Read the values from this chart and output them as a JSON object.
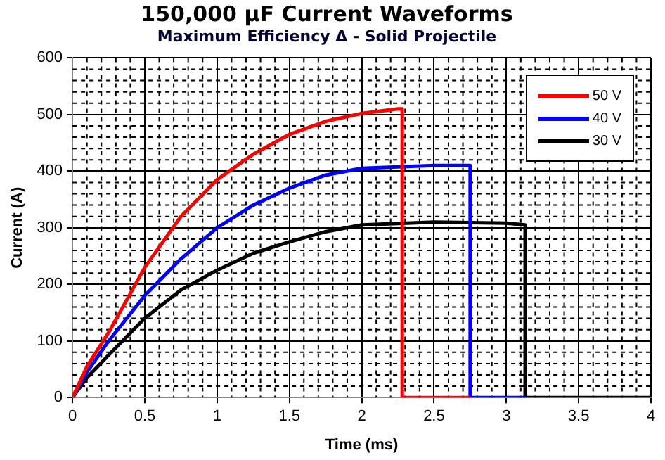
{
  "chart_data": {
    "type": "line",
    "title": "150,000 µF Current Waveforms",
    "subtitle": "Maximum Efficiency Δ - Solid Projectile",
    "xlabel": "Time (ms)",
    "ylabel": "Current (A)",
    "xlim": [
      0,
      4
    ],
    "xticks": [
      0,
      0.5,
      1,
      1.5,
      2,
      2.5,
      3,
      3.5,
      4
    ],
    "ylim": [
      0,
      600
    ],
    "yticks": [
      0,
      100,
      200,
      300,
      400,
      500,
      600
    ],
    "grid": true,
    "legend": "top right",
    "marker": "none",
    "line_style": "solid",
    "series": [
      {
        "name": "50 V",
        "color": "#ff0000",
        "x": [
          0,
          0.1,
          0.25,
          0.5,
          0.75,
          1,
          1.25,
          1.5,
          1.75,
          2,
          2.25,
          2.28,
          2.28,
          2.75
        ],
        "values": [
          0,
          55,
          115,
          230,
          320,
          385,
          430,
          465,
          488,
          502,
          510,
          510,
          0,
          0
        ]
      },
      {
        "name": "40 V",
        "color": "#0000ff",
        "x": [
          0,
          0.1,
          0.25,
          0.5,
          0.75,
          1,
          1.25,
          1.5,
          1.75,
          2,
          2.5,
          2.75,
          2.75,
          3.13
        ],
        "values": [
          0,
          45,
          100,
          180,
          245,
          300,
          340,
          370,
          393,
          405,
          410,
          410,
          0,
          0
        ]
      },
      {
        "name": "30 V",
        "color": "#000000",
        "x": [
          0,
          0.1,
          0.25,
          0.5,
          0.75,
          1,
          1.25,
          1.5,
          1.75,
          2,
          2.5,
          3,
          3.13,
          3.13,
          4
        ],
        "values": [
          0,
          35,
          75,
          140,
          190,
          225,
          255,
          275,
          293,
          305,
          310,
          308,
          305,
          0,
          0
        ]
      }
    ]
  }
}
